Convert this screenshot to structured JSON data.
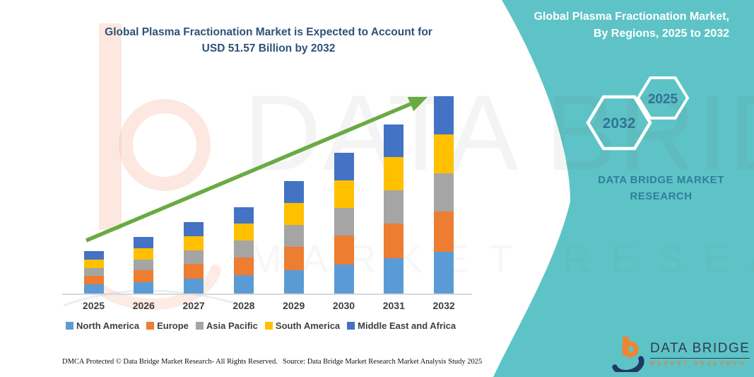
{
  "title": {
    "line1": "Global Plasma Fractionation Market is Expected to Account for",
    "line2": "USD 51.57 Billion by 2032"
  },
  "side_panel": {
    "bg_color": "#5ec3c6",
    "heading_line1": "Global Plasma Fractionation Market,",
    "heading_line2": "By Regions, 2025 to 2032",
    "hexagons": [
      {
        "label": "2032"
      },
      {
        "label": "2025"
      }
    ],
    "hex_label_color": "#2f7596",
    "brand_line1": "DATA BRIDGE MARKET",
    "brand_line2": "RESEARCH"
  },
  "chart_data": {
    "type": "bar",
    "stacked": true,
    "title": "Global Plasma Fractionation Market is Expected to Account for USD 51.57 Billion by 2032",
    "unit": "USD Billion",
    "xlabel": "",
    "ylabel": "",
    "y_axis_visible": false,
    "gridlines": false,
    "legend_position": "bottom",
    "categories": [
      "2025",
      "2026",
      "2027",
      "2028",
      "2029",
      "2030",
      "2031",
      "2032"
    ],
    "series": [
      {
        "name": "North America",
        "color": "#5b9bd5",
        "values": [
          2.5,
          3.2,
          4.0,
          4.9,
          6.3,
          7.8,
          9.4,
          11.0
        ]
      },
      {
        "name": "Europe",
        "color": "#ed7d31",
        "values": [
          2.3,
          3.1,
          3.9,
          4.7,
          6.0,
          7.5,
          9.0,
          10.5
        ]
      },
      {
        "name": "Asia Pacific",
        "color": "#a5a5a5",
        "values": [
          2.1,
          2.8,
          3.6,
          4.4,
          5.7,
          7.1,
          8.6,
          10.0
        ]
      },
      {
        "name": "South America",
        "color": "#ffc000",
        "values": [
          2.2,
          2.9,
          3.7,
          4.5,
          5.8,
          7.2,
          8.7,
          10.1
        ]
      },
      {
        "name": "Middle East and Africa",
        "color": "#4472c4",
        "values": [
          2.1,
          2.9,
          3.6,
          4.2,
          5.7,
          7.2,
          8.5,
          10.0
        ]
      }
    ],
    "totals_estimated": [
      11.2,
      14.9,
      18.8,
      22.7,
      29.5,
      36.8,
      44.2,
      51.6
    ],
    "final_value_label": "USD 51.57 Billion by 2032",
    "trend_arrow": {
      "color": "#6aaa43",
      "direction": "up-right"
    }
  },
  "watermark": {
    "line1": "DATA BRIDGE",
    "line2": "MARKET RESEARCH"
  },
  "footer": {
    "dmca": "DMCA Protected © Data Bridge Market Research-  All Rights Reserved.",
    "source": "Source: Data Bridge Market Research  Market Analysis Study 2025"
  },
  "logo": {
    "name": "DATA BRIDGE",
    "subtitle": "MARKET RESEARCH",
    "navy": "#1f3864",
    "orange": "#ef8532"
  }
}
